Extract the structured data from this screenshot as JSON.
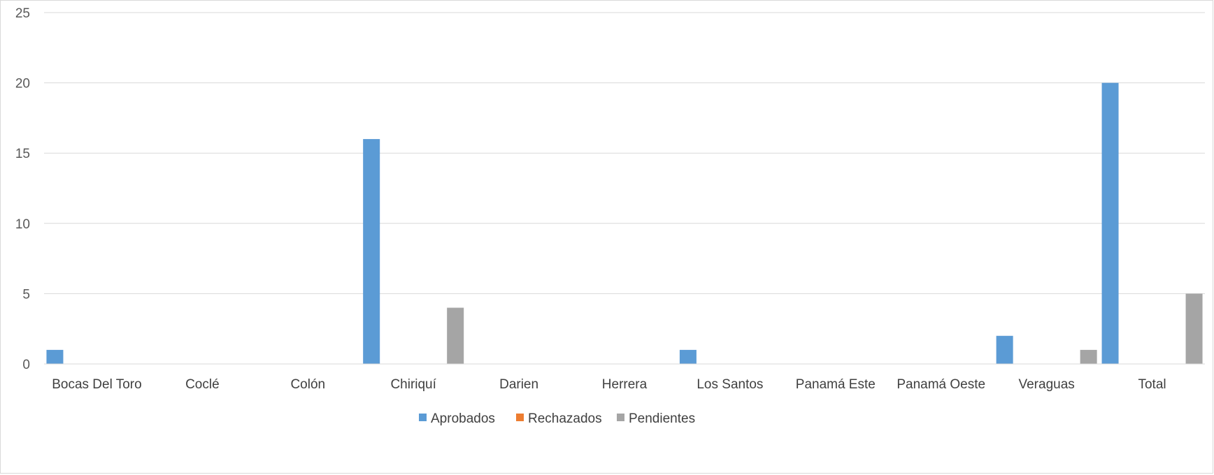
{
  "chart_data": {
    "type": "bar",
    "categories": [
      "Bocas Del Toro",
      "Coclé",
      "Colón",
      "Chiriquí",
      "Darien",
      "Herrera",
      "Los Santos",
      "Panamá Este",
      "Panamá Oeste",
      "Veraguas",
      "Total"
    ],
    "series": [
      {
        "name": "Aprobados",
        "color": "#5b9bd5",
        "values": [
          1,
          0,
          0,
          16,
          0,
          0,
          1,
          0,
          0,
          2,
          20
        ]
      },
      {
        "name": "Rechazados",
        "color": "#ed7d31",
        "values": [
          0,
          0,
          0,
          0,
          0,
          0,
          0,
          0,
          0,
          0,
          0
        ]
      },
      {
        "name": "Pendientes",
        "color": "#a5a5a5",
        "values": [
          0,
          0,
          0,
          4,
          0,
          0,
          0,
          0,
          0,
          1,
          5
        ]
      }
    ],
    "yticks": [
      "0",
      "5",
      "10",
      "15",
      "20",
      "25"
    ],
    "ylim": [
      0,
      25
    ],
    "grid": true,
    "legend_position": "bottom",
    "title": "",
    "xlabel": "",
    "ylabel": ""
  }
}
